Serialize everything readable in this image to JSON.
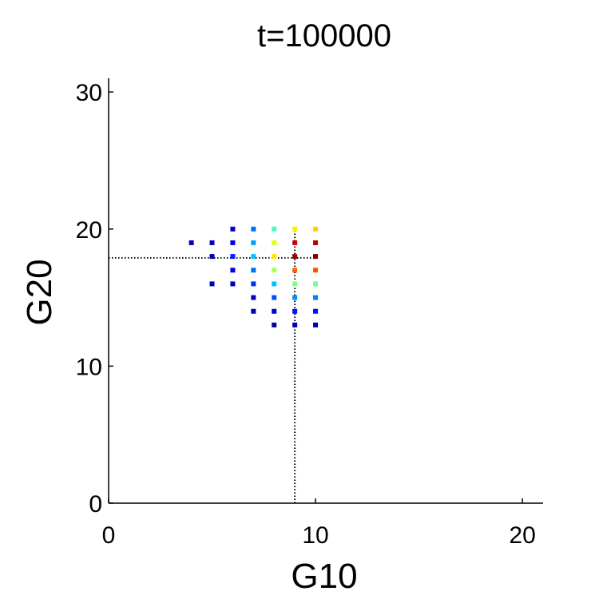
{
  "chart_data": {
    "type": "scatter",
    "title": "t=100000",
    "xlabel": "G10",
    "ylabel": "G20",
    "xlim": [
      0,
      21
    ],
    "ylim": [
      0,
      31
    ],
    "xticks": [
      0,
      10,
      20
    ],
    "yticks": [
      0,
      10,
      20,
      30
    ],
    "xtick_labels": [
      "0",
      "10",
      "20"
    ],
    "ytick_labels": [
      "0",
      "10",
      "20",
      "30"
    ],
    "grid": false,
    "legend": "none",
    "colormap": "jet",
    "reference_lines": {
      "vertical_x": 9,
      "horizontal_y": 17.9,
      "style": "dotted",
      "color": "#000000"
    },
    "points": [
      {
        "x": 4,
        "y": 19,
        "color": "#0000b4"
      },
      {
        "x": 5,
        "y": 19,
        "color": "#0000b4"
      },
      {
        "x": 5,
        "y": 18,
        "color": "#0000b4"
      },
      {
        "x": 5,
        "y": 16,
        "color": "#0000b4"
      },
      {
        "x": 6,
        "y": 20,
        "color": "#0000cd"
      },
      {
        "x": 6,
        "y": 19,
        "color": "#0000e6"
      },
      {
        "x": 6,
        "y": 18,
        "color": "#0020ff"
      },
      {
        "x": 6,
        "y": 17,
        "color": "#0000e6"
      },
      {
        "x": 6,
        "y": 16,
        "color": "#0000cd"
      },
      {
        "x": 7,
        "y": 20,
        "color": "#0070ff"
      },
      {
        "x": 7,
        "y": 19,
        "color": "#00a0ff"
      },
      {
        "x": 7,
        "y": 18,
        "color": "#00c8ff"
      },
      {
        "x": 7,
        "y": 17,
        "color": "#0070ff"
      },
      {
        "x": 7,
        "y": 16,
        "color": "#0030ff"
      },
      {
        "x": 7,
        "y": 15,
        "color": "#0000d4"
      },
      {
        "x": 7,
        "y": 14,
        "color": "#0000b4"
      },
      {
        "x": 8,
        "y": 20,
        "color": "#40ffd0"
      },
      {
        "x": 8,
        "y": 19,
        "color": "#e0ff20"
      },
      {
        "x": 8,
        "y": 18,
        "color": "#ffe600"
      },
      {
        "x": 8,
        "y": 17,
        "color": "#a0ff60"
      },
      {
        "x": 8,
        "y": 16,
        "color": "#00c0ff"
      },
      {
        "x": 8,
        "y": 15,
        "color": "#0050ff"
      },
      {
        "x": 8,
        "y": 14,
        "color": "#0000d4"
      },
      {
        "x": 8,
        "y": 13,
        "color": "#0000a8"
      },
      {
        "x": 9,
        "y": 20,
        "color": "#ffee00"
      },
      {
        "x": 9,
        "y": 19,
        "color": "#cc0000"
      },
      {
        "x": 9,
        "y": 18,
        "color": "#8b0000"
      },
      {
        "x": 9,
        "y": 17,
        "color": "#ff6000"
      },
      {
        "x": 9,
        "y": 16,
        "color": "#80ff80"
      },
      {
        "x": 9,
        "y": 15,
        "color": "#0090ff"
      },
      {
        "x": 9,
        "y": 14,
        "color": "#0010ff"
      },
      {
        "x": 9,
        "y": 13,
        "color": "#0000b4"
      },
      {
        "x": 10,
        "y": 20,
        "color": "#ffd000"
      },
      {
        "x": 10,
        "y": 19,
        "color": "#b80000"
      },
      {
        "x": 10,
        "y": 18,
        "color": "#800000"
      },
      {
        "x": 10,
        "y": 17,
        "color": "#ff5000"
      },
      {
        "x": 10,
        "y": 16,
        "color": "#70ff90"
      },
      {
        "x": 10,
        "y": 15,
        "color": "#0080ff"
      },
      {
        "x": 10,
        "y": 14,
        "color": "#0010ff"
      },
      {
        "x": 10,
        "y": 13,
        "color": "#0000b4"
      }
    ]
  }
}
